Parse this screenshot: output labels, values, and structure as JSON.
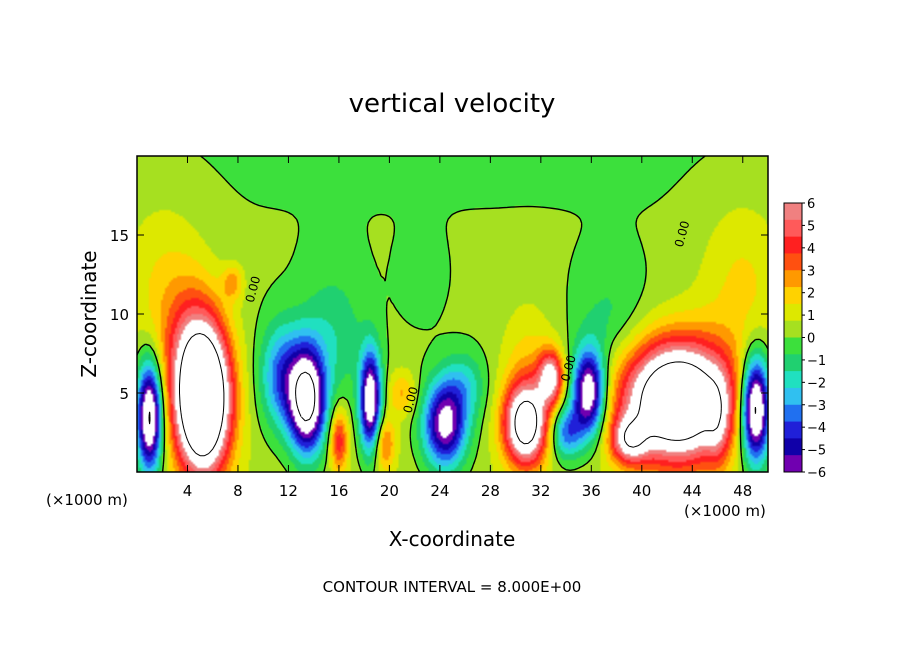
{
  "chart_data": {
    "type": "heatmap",
    "title": "vertical velocity",
    "xlabel": "X-coordinate",
    "ylabel": "Z-coordinate",
    "x_unit_left": "(×1000 m)",
    "x_unit_right": "(×1000 m)",
    "xlim": [
      0,
      50
    ],
    "ylim": [
      0,
      20
    ],
    "xticks": [
      4,
      8,
      12,
      16,
      20,
      24,
      28,
      32,
      36,
      40,
      44,
      48
    ],
    "yticks": [
      5,
      10,
      15
    ],
    "colorbar": {
      "min": -6,
      "max": 6,
      "ticks": [
        6,
        5,
        4,
        3,
        2,
        1,
        0,
        -1,
        -2,
        -3,
        -4,
        -5,
        -6
      ],
      "colors": [
        "#f08080",
        "#ff5a5a",
        "#ff2020",
        "#ff5010",
        "#ff9900",
        "#ffd200",
        "#dde800",
        "#a6e020",
        "#3ce03c",
        "#20d070",
        "#20e0c0",
        "#30c0f0",
        "#2070f0",
        "#2020d8",
        "#1000a8",
        "#7000b0"
      ]
    },
    "contour_levels": [
      -8,
      0,
      8
    ],
    "zero_contour_label": "0.00",
    "contour_interval_text": "CONTOUR INTERVAL =  8.000E+00",
    "features": [
      {
        "type": "updraft",
        "x": 5.2,
        "z": 4.5,
        "peak": 14
      },
      {
        "type": "updraft",
        "x": 7.5,
        "z": 12,
        "peak": 2
      },
      {
        "type": "downdraft",
        "x": 13.5,
        "z": 4.5,
        "peak": -9
      },
      {
        "type": "downdraft",
        "x": 18.5,
        "z": 4.5,
        "peak": -8
      },
      {
        "type": "downdraft",
        "x": 24.5,
        "z": 3,
        "peak": -7
      },
      {
        "type": "updraft",
        "x": 31,
        "z": 3,
        "peak": 9
      },
      {
        "type": "updraft",
        "x": 33,
        "z": 6,
        "peak": 6
      },
      {
        "type": "downdraft",
        "x": 36,
        "z": 5,
        "peak": -8
      },
      {
        "type": "updraft",
        "x": 43,
        "z": 4.5,
        "peak": 12
      },
      {
        "type": "downdraft",
        "x": 49,
        "z": 4,
        "peak": -10
      }
    ]
  }
}
